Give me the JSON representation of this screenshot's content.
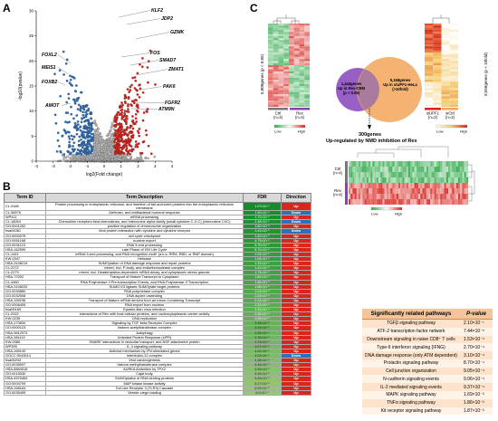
{
  "panels": {
    "a": "A",
    "b": "B",
    "c": "C"
  },
  "panel_a": {
    "xlabel": "log2(Fold change)",
    "ylabel": "-log10(pvalue)",
    "x_ticks": [
      "-4",
      "-3",
      "-2",
      "-1",
      "0",
      "1",
      "2",
      "3",
      "4"
    ],
    "y_ticks": [
      "0",
      "5",
      "10",
      "15",
      "20",
      "25",
      "30"
    ],
    "colors": {
      "down": "#2f6db4",
      "up": "#d6221c",
      "ns": "#b8b8b8"
    },
    "gene_labels": [
      {
        "name": "KLF2",
        "side": "up"
      },
      {
        "name": "JDP2",
        "side": "up"
      },
      {
        "name": "GZMK",
        "side": "up"
      },
      {
        "name": "FOS",
        "side": "up"
      },
      {
        "name": "SMAD7",
        "side": "up"
      },
      {
        "name": "ZMAT1",
        "side": "up"
      },
      {
        "name": "PAK6",
        "side": "up"
      },
      {
        "name": "FGFR2",
        "side": "up"
      },
      {
        "name": "ATM9N",
        "side": "up"
      },
      {
        "name": "FOXL2",
        "side": "down"
      },
      {
        "name": "MEIS1",
        "side": "down"
      },
      {
        "name": "FOXB2",
        "side": "down"
      },
      {
        "name": "AMOT",
        "side": "down"
      }
    ]
  },
  "panel_b": {
    "headers": [
      "Term ID",
      "Term Description",
      "FDR",
      "Direction"
    ],
    "rows": [
      [
        "CL:3165",
        "Protein processing in endoplasmic reticulum, and insertion of tail-anchored proteins into the endoplasmic reticulum membrane",
        "1.07×10⁻¹",
        "Up"
      ],
      [
        "CL:36976",
        "Defensin, and antibacterial humoral response",
        "1.50×10⁻¹",
        "Down"
      ],
      [
        "WP411",
        "mRNA processing",
        "1.70×10⁻¹",
        "Up"
      ],
      [
        "CL:18264",
        "Chemokine receptors bind chemokines, and Interconine alpha family (small cytokine C-X-C) (chemokine CXC)",
        "2.48×10⁻¹",
        "Down"
      ],
      [
        "GO:0001252",
        "positive regulation of chromosome organization",
        "3.80×10⁻¹",
        "Up"
      ],
      [
        "hsa04061",
        "Viral protein interaction with cytokine and cytokine receptor",
        "1.41×10⁻¹",
        "Down"
      ],
      [
        "GO:0000075",
        "cell cycle checkpoint",
        "1.62×10⁻¹",
        "Up"
      ],
      [
        "GO:0051168",
        "nuclear export",
        "4.79×10⁻¹",
        "Up"
      ],
      [
        "GO:0031123",
        "RNA 3-end processing",
        "8.70×10⁻¹",
        "Up"
      ],
      [
        "HSA-162599",
        "Late Phase of HIV Life Cycle",
        "8.70×10⁻¹",
        "Up"
      ],
      [
        "CL:1441",
        "mRNA 3-end processing, and RNA recognition motif. (a.k.a. RRM, RBD, or RNP domain)",
        "1.03×10⁻¹",
        "Up"
      ],
      [
        "KW-0347",
        "Helicase",
        "1.06×10⁻¹",
        "Up"
      ],
      [
        "HSA-3108214",
        "SUMOylation of DNA damage response and repair proteins",
        "1.32×10⁻¹",
        "Up"
      ],
      [
        "CL:2272",
        "mixed, incl. P-body, and endoribonuclease complex",
        "1.42×10⁻¹",
        "Up"
      ],
      [
        "CL:2273",
        "mixed, incl. Deadenylation-dependent mRNA decay, and cytoplasmic stress granule",
        "1.74×10⁻¹",
        "Up"
      ],
      [
        "HSA-72202",
        "Transport of Mature Transcript to Cytoplasm",
        "1.82×10⁻¹",
        "Up"
      ],
      [
        "CL:4460",
        "RNA Polymerase II Pre-transcription Events, and RNA Polymerase II Transcription",
        "1.85×10⁻¹",
        "Up"
      ],
      [
        "HSA-3108232",
        "SUMO E3 ligases SUMOylate target proteins",
        "1.85×10⁻¹",
        "Up"
      ],
      [
        "GO:0030880",
        "RNA polymerase complex",
        "2.03×10⁻¹",
        "Up"
      ],
      [
        "GO:0032508",
        "DNA duplex unwinding",
        "2.03×10⁻¹",
        "Up"
      ],
      [
        "HSA-159236",
        "Transport of Mature mRNA derived from an Intron-Containing Transcript",
        "2.12×10⁻¹",
        "Up"
      ],
      [
        "GO:0006405",
        "RNA export from nucleus",
        "2.32×10⁻¹",
        "Up"
      ],
      [
        "hsa05169",
        "Epstein-Barr virus infection",
        "2.32×10⁻¹",
        "Up"
      ],
      [
        "CL:2022",
        "Interactions of Rev with host cellular proteins, and nucleocytoplasmic carrier activity",
        "2.36×10⁻¹",
        "Up"
      ],
      [
        "KW-0235",
        "DNA replication",
        "2.69×10⁻¹",
        "Up"
      ],
      [
        "HSA-170834",
        "Signaling by TGF-beta Receptor Complex",
        "3.18×10⁻¹",
        "Up"
      ],
      [
        "GO:0000123",
        "histone acetyltransferase complex",
        "3.24×10⁻¹",
        "Up"
      ],
      [
        "HSA-9612973",
        "Autophagy",
        "3.35×10⁻¹",
        "Up"
      ],
      [
        "HSA-381119",
        "Unfolded Protein Response (UPR)",
        "3.79×10⁻¹",
        "Up"
      ],
      [
        "KW-0380",
        "SNARE interactions in vesicular transport, and NSF attachment protein",
        "3.79×10⁻¹",
        "Up"
      ],
      [
        "WP395",
        "IL-4 signaling pathway",
        "3.97×10⁻¹",
        "Up"
      ],
      [
        "HSA-169140",
        "Antiviral mechanism by IFN-stimulated genes",
        "4.02×10⁻¹",
        "Up"
      ],
      [
        "GOCC:0043514",
        "interleukin-12 complex",
        "4.03×10⁻¹",
        "Down"
      ],
      [
        "hsa05203",
        "Viral carcinogenesis",
        "4.18×10⁻¹",
        "Up"
      ],
      [
        "GO:0035097",
        "histone methyltransferase complex",
        "4.44×10⁻¹",
        "Up"
      ],
      [
        "HSA-8854518",
        "AURKA Activation by TPX2",
        "4.55×10⁻¹",
        "Up"
      ],
      [
        "GO:0015030",
        "Cajal body",
        "5.43×10⁻¹",
        "Up"
      ],
      [
        "HSA-4570464",
        "SUMOylation of RNA binding proteins",
        "5.43×10⁻¹",
        "Up"
      ],
      [
        "GO:0004709",
        "MAP kinase kinase activity",
        "6.17×10⁻¹",
        "Up"
      ],
      [
        "HSA-168164",
        "Toll Like Receptor 3 (TLR3) Cascade",
        "6.93×10⁻¹",
        "Up"
      ],
      [
        "GO:0035459",
        "Vesicle cargo loading",
        "6.9×10⁻¹",
        "Up"
      ]
    ]
  },
  "panel_c": {
    "left_heatmap": {
      "ylabel": "5,808genes (p < 0.05)",
      "col_labels": [
        "Ctrl\n(n=4)",
        "Rex\n(n=4)"
      ],
      "legend_low": "Low",
      "legend_high": "High"
    },
    "right_heatmap": {
      "ylabel": "8,556genes (p < 10fold)",
      "col_labels": [
        "siUPF1\n(n=2)",
        "siCtrl\n(n=2)"
      ],
      "legend_low": "Low",
      "legend_high": "High"
    },
    "venn": {
      "left": [
        "1,444genes",
        "Up in Rex-CEM",
        "(p < 0.05)"
      ],
      "right": [
        "5,168genes",
        "Up in siUPF1-HeLa",
        "(>10fold)"
      ]
    },
    "overlap_label": [
      "300genes",
      "Up-regulated by NMD inhibition of Rex"
    ],
    "bottom_heatmap": {
      "row_labels": [
        "Ctrl\n(n=4)",
        "Rex\n(n=4)"
      ],
      "legend_low": "Low",
      "legend_high": "High"
    },
    "pathways": {
      "headers": [
        "Significantly related pathways",
        "P-value"
      ],
      "rows": [
        [
          "TGFβ signaling pathway",
          "2.10×10⁻⁷"
        ],
        [
          "ATF-2 transcription factor network",
          "7.44×10⁻⁵"
        ],
        [
          "Downstream signaling in naive CD8⁺ T cells",
          "1.53×10⁻⁴"
        ],
        [
          "Type-II interferon signaling (IFNG)",
          "2.70×10⁻⁴"
        ],
        [
          "DNA damage response (only ATM dependent)",
          "3.10×10⁻⁴"
        ],
        [
          "Prolactin signaling pathway",
          "8.70×10⁻⁴"
        ],
        [
          "Cell junction organization",
          "9.05×10⁻⁴"
        ],
        [
          "N-cadherin signaling events",
          "9.06×10⁻⁴"
        ],
        [
          "IL-2 mediated signaling events",
          "9.37×10⁻⁴"
        ],
        [
          "MAPK signaling pathway",
          "1.69×10⁻³"
        ],
        [
          "TNFα signaling pathway",
          "1.86×10⁻³"
        ],
        [
          "Kit receptor signaling pathway",
          "1.87×10⁻³"
        ]
      ]
    }
  }
}
